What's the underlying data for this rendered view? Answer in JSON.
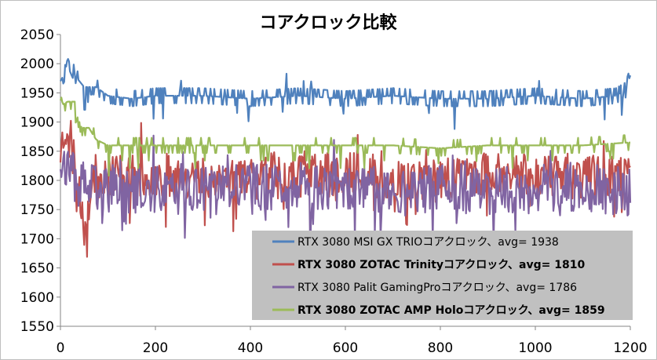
{
  "chart_data": {
    "type": "line",
    "title": "コアクロック比較",
    "xlabel": "",
    "ylabel": "",
    "xlim": [
      0,
      1200
    ],
    "ylim": [
      1550,
      2050
    ],
    "x_ticks": [
      "0",
      "200",
      "400",
      "600",
      "800",
      "1000",
      "1200"
    ],
    "y_ticks": [
      "1550",
      "1600",
      "1650",
      "1700",
      "1750",
      "1800",
      "1850",
      "1900",
      "1950",
      "2000",
      "2050"
    ],
    "grid": false,
    "legend_position": "bottom-right",
    "series": [
      {
        "name": "RTX 3080 MSI GX TRIOコアクロック、avg= 1938",
        "color": "#4f81bd",
        "bold": false,
        "points": [
          [
            0,
            1970
          ],
          [
            10,
            1985
          ],
          [
            15,
            2010
          ],
          [
            25,
            1990
          ],
          [
            35,
            1975
          ],
          [
            50,
            1960
          ],
          [
            75,
            1960
          ],
          [
            100,
            1945
          ],
          [
            150,
            1940
          ],
          [
            200,
            1945
          ],
          [
            300,
            1945
          ],
          [
            400,
            1940
          ],
          [
            500,
            1945
          ],
          [
            600,
            1940
          ],
          [
            700,
            1945
          ],
          [
            800,
            1940
          ],
          [
            900,
            1940
          ],
          [
            1000,
            1945
          ],
          [
            1100,
            1940
          ],
          [
            1170,
            1945
          ],
          [
            1190,
            1955
          ],
          [
            1200,
            1980
          ]
        ]
      },
      {
        "name": "RTX 3080 ZOTAC Trinityコアクロック、avg= 1810",
        "color": "#c0504d",
        "bold": true,
        "points": [
          [
            0,
            1850
          ],
          [
            10,
            1890
          ],
          [
            15,
            1900
          ],
          [
            25,
            1860
          ],
          [
            40,
            1770
          ],
          [
            50,
            1750
          ],
          [
            75,
            1800
          ],
          [
            100,
            1820
          ],
          [
            150,
            1805
          ],
          [
            200,
            1810
          ],
          [
            300,
            1805
          ],
          [
            400,
            1810
          ],
          [
            500,
            1815
          ],
          [
            600,
            1810
          ],
          [
            700,
            1805
          ],
          [
            800,
            1800
          ],
          [
            900,
            1810
          ],
          [
            1000,
            1810
          ],
          [
            1100,
            1805
          ],
          [
            1200,
            1810
          ]
        ]
      },
      {
        "name": "RTX 3080 Palit GamingProコアクロック、avg= 1786",
        "color": "#8064a2",
        "bold": false,
        "points": [
          [
            0,
            1840
          ],
          [
            10,
            1830
          ],
          [
            20,
            1810
          ],
          [
            50,
            1790
          ],
          [
            100,
            1785
          ],
          [
            200,
            1785
          ],
          [
            300,
            1780
          ],
          [
            400,
            1790
          ],
          [
            500,
            1790
          ],
          [
            600,
            1785
          ],
          [
            700,
            1780
          ],
          [
            800,
            1785
          ],
          [
            900,
            1780
          ],
          [
            1000,
            1785
          ],
          [
            1100,
            1790
          ],
          [
            1200,
            1780
          ]
        ]
      },
      {
        "name": "RTX 3080 ZOTAC AMP Holoコアクロック、avg= 1859",
        "color": "#9bbb59",
        "bold": true,
        "points": [
          [
            0,
            1950
          ],
          [
            5,
            1930
          ],
          [
            15,
            1935
          ],
          [
            30,
            1935
          ],
          [
            35,
            1910
          ],
          [
            45,
            1890
          ],
          [
            60,
            1890
          ],
          [
            75,
            1870
          ],
          [
            100,
            1860
          ],
          [
            200,
            1860
          ],
          [
            300,
            1860
          ],
          [
            400,
            1860
          ],
          [
            500,
            1860
          ],
          [
            600,
            1860
          ],
          [
            700,
            1860
          ],
          [
            800,
            1855
          ],
          [
            900,
            1860
          ],
          [
            1000,
            1860
          ],
          [
            1100,
            1860
          ],
          [
            1200,
            1865
          ]
        ]
      }
    ]
  }
}
